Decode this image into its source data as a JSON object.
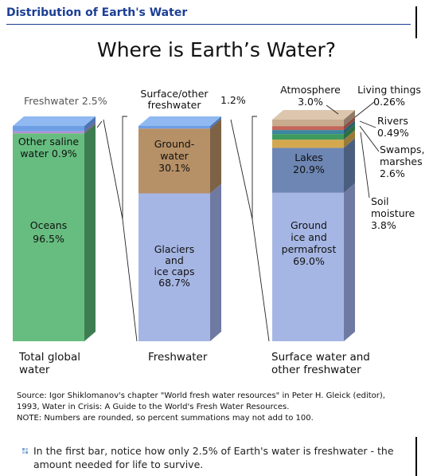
{
  "header": {
    "title": "Distribution of Earth's Water"
  },
  "chart_data": {
    "type": "bar",
    "stacked": true,
    "title": "Where is Earth’s Water?",
    "bars": [
      {
        "label": "Total global water",
        "segments": [
          {
            "name": "Oceans",
            "value": 96.5,
            "text": [
              "Oceans",
              "96.5%"
            ],
            "color": "#67bd80",
            "side": "#3e7d52",
            "top": "#8fd2a3"
          },
          {
            "name": "Other saline water",
            "value": 0.9,
            "text": [
              "Other saline",
              "water 0.9%"
            ],
            "color": "#b58ed2",
            "side": "#7a5f91",
            "top": "#cdb1e3"
          },
          {
            "name": "Freshwater",
            "value": 2.5,
            "text": [
              "Freshwater 2.5%"
            ],
            "color": "#6f9ee5",
            "side": "#4d74b3",
            "top": "#8fb9f0"
          }
        ]
      },
      {
        "label": "Freshwater",
        "segments": [
          {
            "name": "Glaciers and ice caps",
            "value": 68.7,
            "text": [
              "Glaciers",
              "and",
              "ice caps",
              "68.7%"
            ],
            "color": "#a6b6e4",
            "side": "#6f7aa3",
            "top": "#c0cdf0"
          },
          {
            "name": "Groundwater",
            "value": 30.1,
            "text": [
              "Ground-",
              "water",
              "30.1%"
            ],
            "color": "#b69066",
            "side": "#7e6246",
            "top": "#cdb190"
          },
          {
            "name": "Surface/other freshwater",
            "value": 1.2,
            "text": [
              "Surface/other",
              "freshwater",
              "1.2%"
            ],
            "color": "#6f9ee5",
            "side": "#4d74b3",
            "top": "#8fb9f0"
          }
        ]
      },
      {
        "label": "Surface water and other freshwater",
        "segments": [
          {
            "name": "Ground ice and permafrost",
            "value": 69.0,
            "text": [
              "Ground",
              "ice and",
              "permafrost",
              "69.0%"
            ],
            "color": "#a6b6e4",
            "side": "#6f7aa3",
            "top": "#c0cdf0"
          },
          {
            "name": "Lakes",
            "value": 20.9,
            "text": [
              "Lakes",
              "20.9%"
            ],
            "color": "#6d86b3",
            "side": "#4c5e80",
            "top": "#8aa0c8"
          },
          {
            "name": "Soil moisture",
            "value": 3.8,
            "text": [
              "Soil",
              "moisture",
              "3.8%"
            ],
            "color": "#d4a84e",
            "side": "#9a7a38",
            "top": "#e2c07a"
          },
          {
            "name": "Swamps, marshes",
            "value": 2.6,
            "text": [
              "Swamps,",
              "marshes",
              "2.6%"
            ],
            "color": "#3f9a5e",
            "side": "#2c6e43",
            "top": "#6cb887"
          },
          {
            "name": "Rivers",
            "value": 0.49,
            "text": [
              "Rivers",
              "0.49%"
            ],
            "color": "#3b86a0",
            "side": "#2a6070",
            "top": "#5ea3ba"
          },
          {
            "name": "Living things",
            "value": 0.26,
            "text": [
              "Living things",
              "0.26%"
            ],
            "color": "#c3665a",
            "side": "#8e4a41",
            "top": "#d78c82"
          },
          {
            "name": "Atmosphere",
            "value": 3.0,
            "text": [
              "Atmosphere",
              "3.0%"
            ],
            "color": "#c9ac8f",
            "side": "#8e7a66",
            "top": "#dcc6ae"
          }
        ]
      }
    ],
    "ylim": [
      0,
      100
    ]
  },
  "source": {
    "line1": "Source: Igor Shiklomanov's chapter \"World fresh water resources\" in Peter H. Gleick (editor),",
    "line2": "1993, Water in Crisis: A Guide to the World's Fresh Water Resources.",
    "line3": "NOTE: Numbers are rounded, so percent summations may not add to 100."
  },
  "note": {
    "text": "In the first bar, notice how only 2.5% of Earth's water is freshwater - the amount needed for life to survive.",
    "bullet_colors": [
      "#7aa6d6",
      "#b0c8e8"
    ]
  }
}
